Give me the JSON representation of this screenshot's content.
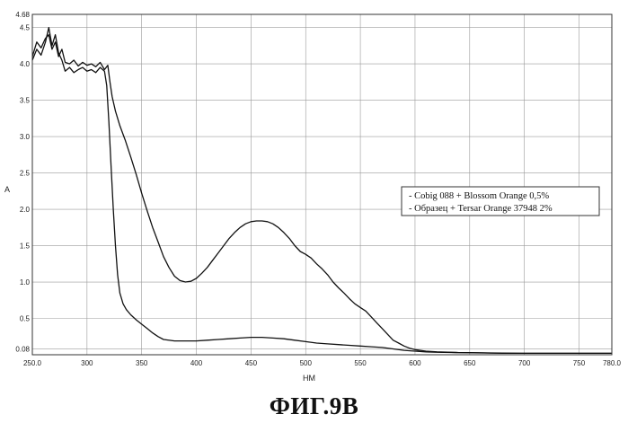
{
  "figure_caption": "ФИГ.9В",
  "chart_data": {
    "type": "line",
    "title": "",
    "xlabel": "НМ",
    "ylabel": "A",
    "xlim": [
      250,
      780
    ],
    "ylim": [
      0,
      4.68
    ],
    "x_ticks": [
      250.0,
      300,
      350,
      400,
      450,
      500,
      550,
      600,
      650,
      700,
      750,
      780.0
    ],
    "x_tick_labels": [
      "250.0",
      "300",
      "350",
      "400",
      "450",
      "500",
      "550",
      "600",
      "650",
      "700",
      "750",
      "780.0"
    ],
    "y_ticks": [
      0.08,
      0.5,
      1.0,
      1.5,
      2.0,
      2.5,
      3.0,
      3.5,
      4.0,
      4.5,
      4.68
    ],
    "y_tick_labels": [
      "0.08",
      "0.5",
      "1.0",
      "1.5",
      "2.0",
      "2.5",
      "3.0",
      "3.5",
      "4.0",
      "4.5",
      "4.68"
    ],
    "grid": true,
    "legend_position": "right-middle",
    "series": [
      {
        "name": "- Cobig 088 + Blossom Orange 0,5%",
        "x": [
          250,
          254,
          258,
          262,
          265,
          268,
          271,
          274,
          277,
          280,
          284,
          288,
          292,
          296,
          300,
          304,
          308,
          312,
          316,
          319,
          321,
          323,
          326,
          330,
          335,
          340,
          345,
          350,
          355,
          360,
          365,
          370,
          375,
          380,
          385,
          390,
          395,
          400,
          405,
          410,
          415,
          420,
          425,
          430,
          435,
          440,
          445,
          450,
          455,
          460,
          465,
          470,
          475,
          480,
          485,
          490,
          495,
          500,
          505,
          510,
          515,
          520,
          525,
          530,
          535,
          540,
          545,
          550,
          555,
          560,
          565,
          570,
          575,
          580,
          585,
          590,
          595,
          600,
          605,
          610,
          620,
          630,
          640,
          650,
          670,
          700,
          730,
          760,
          780
        ],
        "y": [
          4.1,
          4.3,
          4.22,
          4.35,
          4.4,
          4.2,
          4.3,
          4.1,
          4.2,
          4.02,
          4.0,
          4.05,
          3.97,
          4.02,
          3.98,
          4.0,
          3.96,
          4.02,
          3.92,
          3.98,
          3.75,
          3.55,
          3.35,
          3.15,
          2.95,
          2.72,
          2.48,
          2.22,
          1.98,
          1.75,
          1.55,
          1.35,
          1.2,
          1.08,
          1.02,
          1.0,
          1.01,
          1.05,
          1.12,
          1.2,
          1.3,
          1.4,
          1.5,
          1.6,
          1.68,
          1.75,
          1.8,
          1.83,
          1.84,
          1.84,
          1.83,
          1.8,
          1.75,
          1.68,
          1.6,
          1.5,
          1.42,
          1.38,
          1.33,
          1.25,
          1.18,
          1.1,
          1.0,
          0.92,
          0.85,
          0.77,
          0.7,
          0.65,
          0.6,
          0.52,
          0.44,
          0.36,
          0.28,
          0.2,
          0.16,
          0.12,
          0.09,
          0.07,
          0.06,
          0.05,
          0.04,
          0.035,
          0.03,
          0.03,
          0.025,
          0.02,
          0.02,
          0.02,
          0.02
        ],
        "color": "#111111"
      },
      {
        "name": "- Образец + Tersar Orange 37948 2%",
        "x": [
          250,
          254,
          258,
          262,
          265,
          268,
          271,
          274,
          277,
          280,
          284,
          288,
          292,
          296,
          300,
          304,
          308,
          312,
          316,
          318,
          320,
          322,
          324,
          326,
          328,
          330,
          333,
          336,
          340,
          345,
          350,
          355,
          360,
          365,
          370,
          380,
          390,
          400,
          410,
          420,
          430,
          440,
          450,
          460,
          470,
          480,
          490,
          500,
          510,
          520,
          530,
          540,
          550,
          560,
          570,
          580,
          590,
          600,
          610,
          620,
          640,
          660,
          680,
          700,
          730,
          760,
          780
        ],
        "y": [
          4.05,
          4.2,
          4.12,
          4.3,
          4.5,
          4.25,
          4.4,
          4.15,
          4.05,
          3.9,
          3.95,
          3.88,
          3.92,
          3.95,
          3.9,
          3.92,
          3.88,
          3.95,
          3.9,
          3.7,
          3.2,
          2.6,
          2.0,
          1.5,
          1.1,
          0.85,
          0.7,
          0.62,
          0.55,
          0.48,
          0.42,
          0.36,
          0.3,
          0.25,
          0.21,
          0.19,
          0.19,
          0.19,
          0.2,
          0.21,
          0.22,
          0.23,
          0.24,
          0.24,
          0.23,
          0.22,
          0.2,
          0.18,
          0.16,
          0.15,
          0.14,
          0.13,
          0.12,
          0.11,
          0.1,
          0.08,
          0.06,
          0.05,
          0.04,
          0.035,
          0.03,
          0.025,
          0.02,
          0.02,
          0.02,
          0.02,
          0.02
        ],
        "color": "#111111"
      }
    ]
  }
}
